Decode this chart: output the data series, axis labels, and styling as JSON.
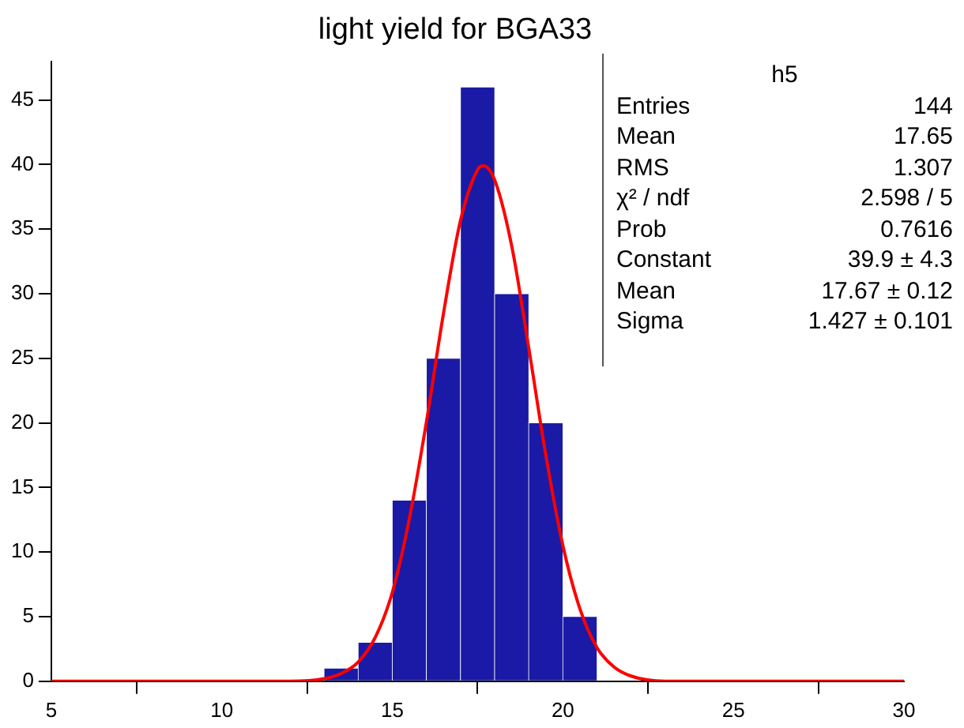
{
  "chart_data": {
    "type": "histogram",
    "title": "light yield for BGA33",
    "bins": [
      5,
      6,
      7,
      8,
      9,
      10,
      11,
      12,
      13,
      14,
      15,
      16,
      17,
      18,
      19,
      20,
      21,
      22,
      23,
      24,
      25,
      26,
      27,
      28,
      29,
      30
    ],
    "values": [
      0,
      0,
      0,
      0,
      0,
      0,
      0,
      0,
      1,
      3,
      14,
      25,
      46,
      30,
      20,
      5,
      0,
      0,
      0,
      0,
      0,
      0,
      0,
      0,
      0
    ],
    "color": "#1a1aa6",
    "series": [
      {
        "type": "line",
        "color": "#ff0000",
        "x": [
          5,
          12,
          13,
          13.5,
          14,
          14.5,
          15,
          15.5,
          16,
          16.5,
          17,
          17.5,
          17.67,
          18,
          18.5,
          19,
          19.5,
          20,
          20.5,
          21,
          21.5,
          22,
          23,
          30
        ],
        "values": [
          0,
          0,
          0.2,
          0.6,
          1.5,
          3.4,
          6.9,
          12.6,
          20.1,
          28.5,
          35.7,
          39.6,
          39.9,
          38.8,
          33.7,
          25.8,
          17.5,
          10.5,
          5.6,
          2.6,
          1.1,
          0.4,
          0,
          0
        ]
      }
    ],
    "xlim": [
      5,
      30
    ],
    "xticks": [
      5,
      10,
      15,
      20,
      25,
      30
    ],
    "ylim": [
      0,
      48
    ],
    "yticks": [
      0,
      5,
      10,
      15,
      20,
      25,
      30,
      35,
      40,
      45
    ],
    "annotations": [
      "h5",
      "Entries\t144",
      "Mean\t17.65",
      "RMS\t1.307",
      "χ² / ndf\t2.598 / 5",
      "Prob\t0.7616",
      "Constant\t39.9 ± 4.3",
      "Mean\t17.67 ± 0.12",
      "Sigma\t1.427 ± 0.101"
    ]
  }
}
